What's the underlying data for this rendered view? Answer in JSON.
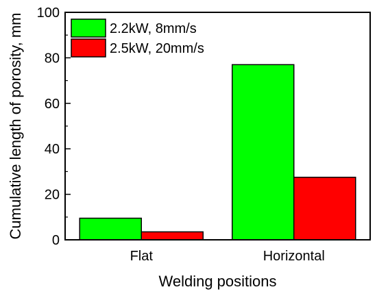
{
  "chart_data": {
    "type": "bar",
    "categories": [
      "Flat",
      "Horizontal"
    ],
    "series": [
      {
        "name": "2.2kW, 8mm/s",
        "values": [
          9.5,
          77
        ],
        "color": "#00ff00"
      },
      {
        "name": "2.5kW, 20mm/s",
        "values": [
          3.5,
          27.5
        ],
        "color": "#ff0000"
      }
    ],
    "xlabel": "Welding positions",
    "ylabel": "Cumulative length of porosity, mm",
    "ylim": [
      0,
      100
    ],
    "yticks": [
      0,
      20,
      40,
      60,
      80,
      100
    ],
    "yminor_step": 10,
    "legend_position": "top-left",
    "grid": false
  }
}
